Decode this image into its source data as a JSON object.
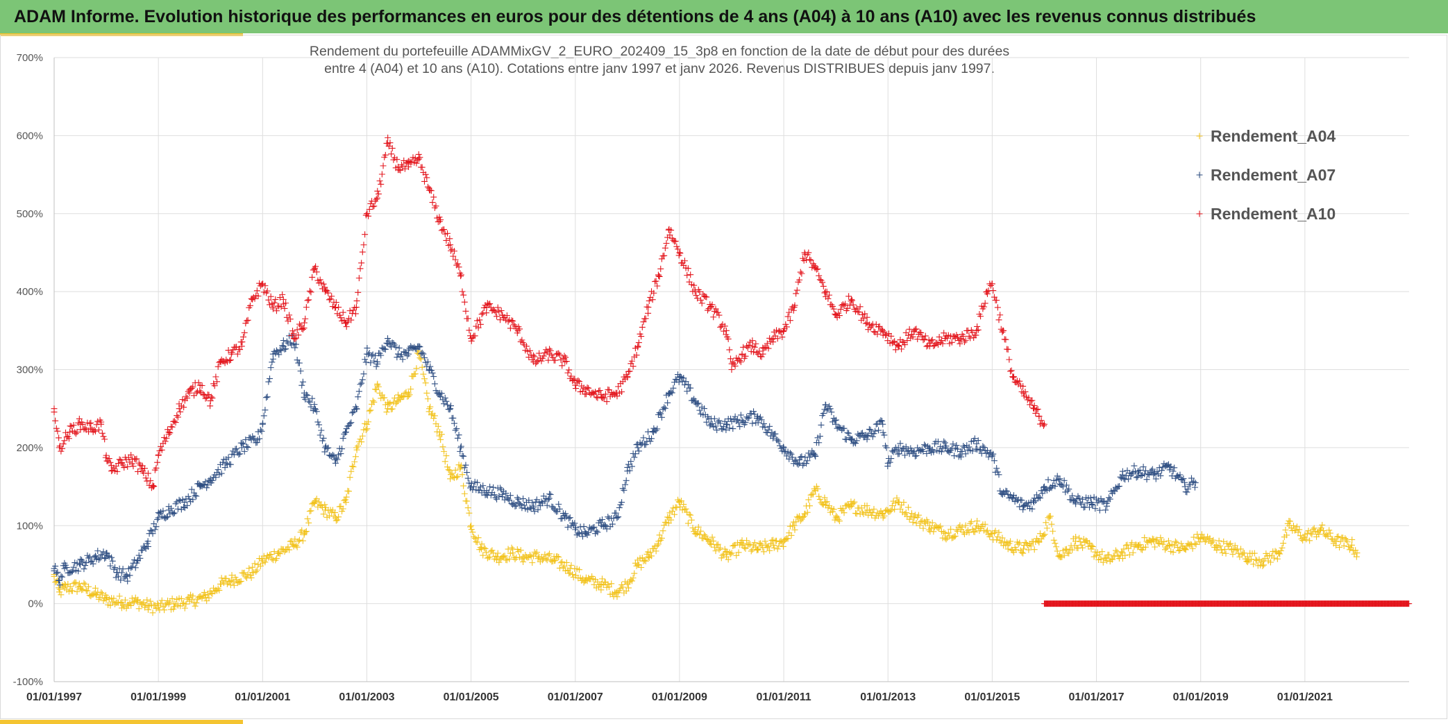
{
  "banner": {
    "title": "ADAM Informe. Evolution historique des performances en euros pour des détentions de 4 ans (A04) à 10 ans (A10) avec les revenus connus distribués"
  },
  "colors": {
    "banner_bg": "#7cc576",
    "accent": "#f4c430",
    "A04": "#f2c21b",
    "A07": "#2e4e82",
    "A10": "#e3151c",
    "grid": "#dedede"
  },
  "chart_data": {
    "type": "scatter",
    "title_line1": "Rendement du portefeuille ADAMMixGV_2_EURO_202409_15_3p8  en fonction de la date de début pour des durées",
    "title_line2": "entre 4 (A04) et 10 ans (A10). Cotations entre janv 1997 et janv 2026. Revenus DISTRIBUES depuis janv 1997.",
    "marker": "+",
    "ylim": [
      -100,
      700
    ],
    "xlim": [
      1997.0,
      2023.0
    ],
    "y_ticks": [
      "700%",
      "600%",
      "500%",
      "400%",
      "300%",
      "200%",
      "100%",
      "0%",
      "-100%"
    ],
    "y_tick_values": [
      700,
      600,
      500,
      400,
      300,
      200,
      100,
      0,
      -100
    ],
    "x_ticks": [
      "01/01/1997",
      "01/01/1999",
      "01/01/2001",
      "01/01/2003",
      "01/01/2005",
      "01/01/2007",
      "01/01/2009",
      "01/01/2011",
      "01/01/2013",
      "01/01/2015",
      "01/01/2017",
      "01/01/2019",
      "01/01/2021"
    ],
    "x_tick_values": [
      1997,
      1999,
      2001,
      2003,
      2005,
      2007,
      2009,
      2011,
      2013,
      2015,
      2017,
      2019,
      2021
    ],
    "legend": [
      "Rendement_A04",
      "Rendement_A07",
      "Rendement_A10"
    ],
    "legend_position": "top-right",
    "series": [
      {
        "name": "Rendement_A04",
        "x": [
          1997.0,
          1997.1,
          1997.2,
          1997.5,
          1997.8,
          1998.0,
          1998.3,
          1998.6,
          1998.8,
          1999.0,
          1999.3,
          1999.6,
          1999.9,
          2000.2,
          2000.4,
          2000.8,
          2001.0,
          2001.3,
          2001.6,
          2001.8,
          2002.0,
          2002.2,
          2002.4,
          2002.6,
          2002.8,
          2003.0,
          2003.2,
          2003.4,
          2003.6,
          2003.8,
          2004.0,
          2004.2,
          2004.4,
          2004.6,
          2004.8,
          2005.0,
          2005.2,
          2005.5,
          2005.8,
          2006.0,
          2006.3,
          2006.6,
          2006.9,
          2007.2,
          2007.5,
          2007.8,
          2008.0,
          2008.2,
          2008.4,
          2008.6,
          2008.8,
          2009.0,
          2009.3,
          2009.6,
          2009.9,
          2010.2,
          2010.5,
          2010.8,
          2011.0,
          2011.2,
          2011.4,
          2011.6,
          2011.8,
          2012.0,
          2012.3,
          2012.6,
          2012.9,
          2013.2,
          2013.5,
          2013.8,
          2014.1,
          2014.4,
          2014.7,
          2015.0,
          2015.3,
          2015.6,
          2015.9,
          2016.1,
          2016.3,
          2016.6,
          2016.9,
          2017.2,
          2017.5,
          2017.8,
          2018.1,
          2018.4,
          2018.7,
          2019.0,
          2019.3,
          2019.6,
          2019.9,
          2020.2,
          2020.5,
          2020.7,
          2021.0,
          2021.3,
          2021.6,
          2021.9,
          2022.0
        ],
        "values": [
          35,
          15,
          20,
          22,
          12,
          5,
          2,
          2,
          -3,
          -5,
          0,
          3,
          8,
          25,
          30,
          40,
          55,
          65,
          75,
          90,
          130,
          120,
          110,
          130,
          200,
          230,
          280,
          250,
          260,
          270,
          320,
          250,
          220,
          160,
          175,
          100,
          70,
          60,
          65,
          60,
          60,
          55,
          45,
          30,
          25,
          15,
          25,
          50,
          60,
          80,
          110,
          130,
          95,
          80,
          60,
          75,
          70,
          75,
          80,
          100,
          115,
          145,
          130,
          110,
          125,
          120,
          115,
          130,
          110,
          100,
          90,
          95,
          100,
          90,
          75,
          70,
          80,
          110,
          60,
          80,
          70,
          55,
          65,
          75,
          80,
          75,
          70,
          85,
          75,
          70,
          60,
          55,
          65,
          100,
          85,
          95,
          80,
          75,
          65
        ]
      },
      {
        "name": "Rendement_A07",
        "x": [
          1997.0,
          1997.1,
          1997.2,
          1997.5,
          1997.8,
          1998.0,
          1998.2,
          1998.4,
          1998.6,
          1998.8,
          1999.0,
          1999.2,
          1999.5,
          1999.8,
          2000.0,
          2000.3,
          2000.6,
          2000.9,
          2001.0,
          2001.2,
          2001.4,
          2001.6,
          2001.8,
          2002.0,
          2002.2,
          2002.4,
          2002.6,
          2002.8,
          2003.0,
          2003.2,
          2003.4,
          2003.6,
          2003.8,
          2004.0,
          2004.2,
          2004.4,
          2004.6,
          2004.8,
          2005.0,
          2005.3,
          2005.6,
          2005.9,
          2006.2,
          2006.5,
          2006.8,
          2007.0,
          2007.2,
          2007.5,
          2007.8,
          2008.0,
          2008.2,
          2008.5,
          2008.8,
          2009.0,
          2009.3,
          2009.6,
          2009.9,
          2010.2,
          2010.5,
          2010.8,
          2011.0,
          2011.3,
          2011.6,
          2011.8,
          2012.0,
          2012.3,
          2012.6,
          2012.9,
          2013.0,
          2013.2,
          2013.5,
          2013.8,
          2014.1,
          2014.4,
          2014.7,
          2015.0,
          2015.2,
          2015.4,
          2015.6,
          2015.8,
          2016.0,
          2016.3,
          2016.6,
          2016.9,
          2017.2,
          2017.5,
          2017.8,
          2018.1,
          2018.4,
          2018.7,
          2018.9
        ],
        "values": [
          45,
          30,
          45,
          50,
          60,
          65,
          40,
          35,
          55,
          80,
          110,
          120,
          130,
          150,
          160,
          180,
          200,
          210,
          230,
          320,
          330,
          340,
          270,
          250,
          200,
          180,
          220,
          250,
          320,
          310,
          340,
          320,
          320,
          330,
          300,
          270,
          250,
          200,
          150,
          145,
          140,
          130,
          125,
          135,
          110,
          95,
          90,
          100,
          110,
          170,
          200,
          220,
          270,
          290,
          260,
          230,
          230,
          235,
          240,
          215,
          200,
          180,
          190,
          255,
          230,
          210,
          215,
          230,
          180,
          200,
          195,
          200,
          200,
          195,
          205,
          190,
          140,
          135,
          125,
          130,
          150,
          160,
          130,
          130,
          125,
          165,
          170,
          165,
          175,
          150,
          155
        ]
      },
      {
        "name": "Rendement_A10",
        "x": [
          1997.0,
          1997.1,
          1997.3,
          1997.5,
          1997.7,
          1997.9,
          1998.0,
          1998.1,
          1998.3,
          1998.5,
          1998.7,
          1998.9,
          1999.0,
          1999.2,
          1999.4,
          1999.6,
          1999.8,
          2000.0,
          2000.2,
          2000.4,
          2000.6,
          2000.8,
          2001.0,
          2001.2,
          2001.4,
          2001.6,
          2001.8,
          2002.0,
          2002.2,
          2002.4,
          2002.6,
          2002.8,
          2003.0,
          2003.2,
          2003.4,
          2003.6,
          2003.8,
          2004.0,
          2004.2,
          2004.4,
          2004.6,
          2004.8,
          2005.0,
          2005.3,
          2005.6,
          2005.9,
          2006.2,
          2006.5,
          2006.8,
          2007.0,
          2007.2,
          2007.5,
          2007.8,
          2008.0,
          2008.2,
          2008.4,
          2008.6,
          2008.8,
          2009.0,
          2009.3,
          2009.6,
          2009.9,
          2010.0,
          2010.2,
          2010.4,
          2010.6,
          2010.8,
          2011.0,
          2011.2,
          2011.4,
          2011.6,
          2011.8,
          2012.0,
          2012.3,
          2012.6,
          2012.9,
          2013.2,
          2013.5,
          2013.8,
          2014.1,
          2014.4,
          2014.7,
          2014.9,
          2015.0,
          2015.2,
          2015.4,
          2015.6,
          2015.8,
          2015.9,
          2016.0
        ],
        "values": [
          250,
          200,
          220,
          230,
          225,
          230,
          190,
          170,
          180,
          185,
          170,
          150,
          190,
          220,
          250,
          270,
          280,
          260,
          310,
          320,
          330,
          390,
          410,
          380,
          390,
          340,
          360,
          430,
          400,
          380,
          360,
          380,
          500,
          520,
          590,
          560,
          560,
          570,
          530,
          490,
          460,
          420,
          340,
          380,
          370,
          350,
          310,
          320,
          310,
          280,
          275,
          265,
          270,
          290,
          330,
          380,
          420,
          480,
          450,
          400,
          380,
          350,
          300,
          320,
          330,
          320,
          340,
          350,
          380,
          450,
          430,
          400,
          370,
          390,
          360,
          350,
          330,
          350,
          330,
          340,
          340,
          350,
          400,
          410,
          350,
          290,
          270,
          250,
          240,
          230
        ]
      },
      {
        "name": "Rendement_A10 (0% band)",
        "x_range": [
          2016.0,
          2023.0
        ],
        "values": [
          0
        ]
      }
    ]
  }
}
